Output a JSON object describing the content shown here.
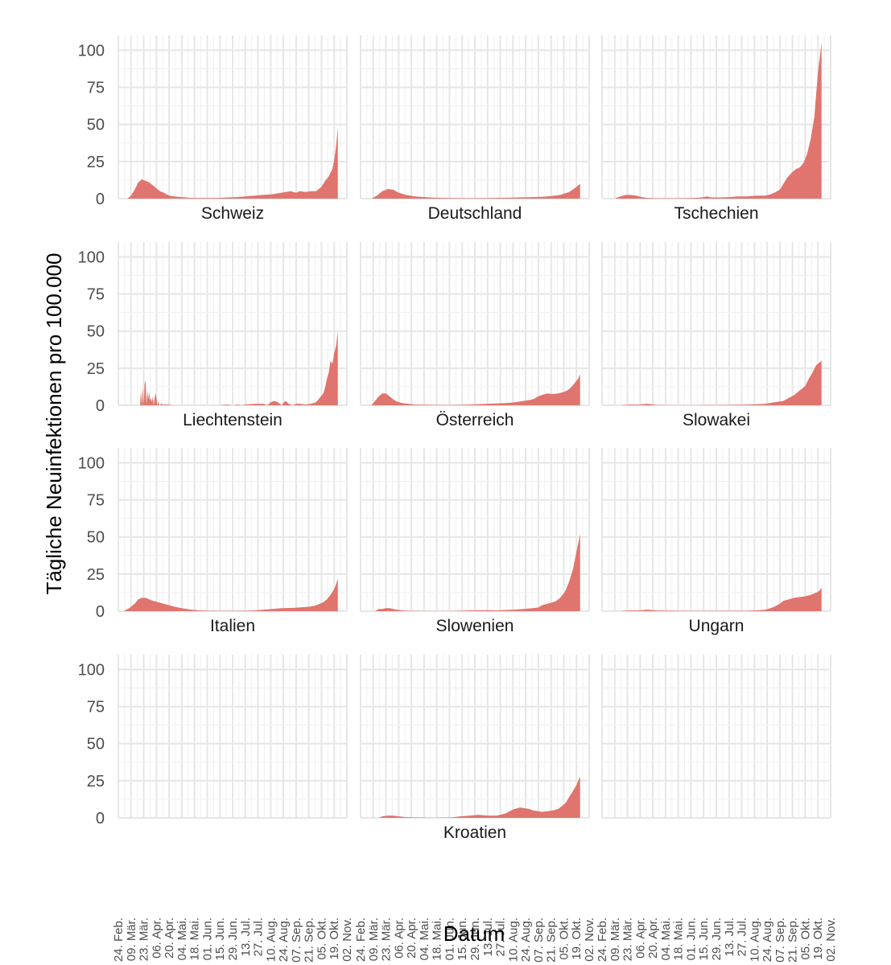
{
  "chart_data": {
    "type": "area",
    "layout": "facet-grid 4x3",
    "xlabel": "Datum",
    "ylabel": "Tägliche Neuinfektionen pro 100.000",
    "ylim": [
      0,
      110
    ],
    "yticks": [
      0,
      25,
      50,
      75,
      100
    ],
    "x_tick_labels": [
      "24. Feb.",
      "09. Mär.",
      "23. Mär.",
      "06. Apr.",
      "20. Apr.",
      "04. Mai.",
      "18. Mai.",
      "01. Jun.",
      "15. Jun.",
      "29. Jun.",
      "13. Jul.",
      "27. Jul.",
      "10. Aug.",
      "24. Aug.",
      "07. Sep.",
      "21. Sep.",
      "05. Okt.",
      "19. Okt.",
      "02. Nov."
    ],
    "x_unit": "days since 24. Feb.",
    "xlim": [
      0,
      252
    ],
    "fill_color": "#E0746E",
    "grid": true,
    "panels": [
      {
        "name": "Schweiz",
        "x": [
          0,
          10,
          14,
          18,
          22,
          26,
          30,
          34,
          38,
          42,
          46,
          50,
          56,
          62,
          70,
          80,
          90,
          100,
          110,
          120,
          130,
          140,
          150,
          160,
          170,
          180,
          190,
          196,
          200,
          206,
          212,
          218,
          224,
          228,
          232,
          236,
          238,
          240,
          242
        ],
        "y": [
          0,
          0,
          2,
          6,
          11,
          13,
          12,
          11,
          9,
          7,
          5,
          4,
          2,
          1.5,
          1,
          0.5,
          0.5,
          0.5,
          0.5,
          0.8,
          1,
          1.5,
          2,
          2.5,
          3,
          4,
          5,
          4,
          5,
          4.5,
          5,
          5,
          8,
          12,
          15,
          20,
          26,
          35,
          48
        ]
      },
      {
        "name": "Deutschland",
        "x": [
          0,
          12,
          18,
          24,
          30,
          36,
          42,
          50,
          60,
          80,
          100,
          120,
          140,
          160,
          180,
          200,
          210,
          220,
          230,
          236,
          240,
          242
        ],
        "y": [
          0,
          0,
          2,
          5,
          6.5,
          6,
          4,
          2.5,
          1.5,
          0.7,
          0.4,
          0.3,
          0.4,
          0.6,
          0.9,
          1.2,
          1.7,
          2.5,
          4.5,
          7,
          9,
          10
        ]
      },
      {
        "name": "Tschechien",
        "x": [
          0,
          14,
          20,
          26,
          32,
          38,
          44,
          50,
          60,
          80,
          100,
          110,
          116,
          120,
          130,
          140,
          150,
          160,
          170,
          180,
          186,
          190,
          196,
          200,
          204,
          210,
          214,
          218,
          222,
          226,
          230,
          234,
          236,
          238,
          240,
          242
        ],
        "y": [
          0,
          0,
          1.5,
          2.5,
          2.5,
          2,
          1,
          0.5,
          0.3,
          0.3,
          0.4,
          0.8,
          1.5,
          0.8,
          0.8,
          1,
          1.5,
          1.5,
          2,
          2,
          3,
          4,
          6,
          10,
          14,
          18,
          20,
          21,
          24,
          30,
          40,
          55,
          70,
          85,
          95,
          105
        ]
      },
      {
        "name": "Liechtenstein",
        "x": [
          0,
          24,
          25,
          26,
          27,
          28,
          29,
          30,
          31,
          32,
          33,
          34,
          35,
          36,
          37,
          38,
          39,
          40,
          41,
          42,
          43,
          44,
          45,
          46,
          47,
          48,
          49,
          50,
          55,
          60,
          70,
          110,
          120,
          126,
          132,
          136,
          140,
          150,
          160,
          164,
          168,
          172,
          176,
          180,
          184,
          188,
          192,
          196,
          200,
          206,
          212,
          218,
          222,
          226,
          228,
          230,
          232,
          234,
          236,
          238,
          240,
          242
        ],
        "y": [
          0,
          0,
          10,
          0,
          12,
          0,
          14,
          17,
          0,
          10,
          4,
          9,
          3,
          5,
          2,
          6,
          0,
          5,
          8,
          5,
          0,
          3,
          0,
          0,
          1,
          1,
          0,
          0.5,
          0.5,
          0,
          0,
          0,
          0.5,
          0,
          0.5,
          0,
          0.5,
          1,
          1,
          0,
          2,
          3,
          2,
          0,
          3,
          1,
          0,
          1,
          1,
          0.5,
          1,
          2,
          5,
          8,
          12,
          18,
          22,
          30,
          28,
          35,
          40,
          50
        ]
      },
      {
        "name": "Österreich",
        "x": [
          0,
          12,
          16,
          20,
          24,
          28,
          32,
          36,
          40,
          46,
          52,
          60,
          80,
          100,
          120,
          140,
          160,
          170,
          180,
          190,
          196,
          200,
          206,
          212,
          218,
          224,
          228,
          232,
          236,
          240,
          242
        ],
        "y": [
          0,
          0,
          3,
          6,
          8,
          8,
          6,
          4,
          2.5,
          1.5,
          1,
          0.5,
          0.3,
          0.2,
          0.5,
          1,
          1.5,
          2,
          3,
          4,
          6,
          7,
          8,
          7.5,
          8,
          9,
          10,
          12,
          15,
          18,
          21
        ]
      },
      {
        "name": "Slowakei",
        "x": [
          0,
          20,
          30,
          40,
          50,
          60,
          80,
          100,
          120,
          140,
          160,
          170,
          180,
          190,
          200,
          206,
          212,
          218,
          224,
          228,
          232,
          236,
          240,
          242
        ],
        "y": [
          0,
          0,
          0.5,
          0.5,
          1,
          0.2,
          0.1,
          0.1,
          0.2,
          0.3,
          0.5,
          0.7,
          1,
          2,
          3,
          5,
          7,
          10,
          13,
          18,
          22,
          27,
          29,
          30
        ]
      },
      {
        "name": "Italien",
        "x": [
          0,
          6,
          12,
          18,
          22,
          26,
          30,
          34,
          38,
          44,
          50,
          56,
          62,
          70,
          80,
          90,
          100,
          110,
          120,
          130,
          140,
          150,
          160,
          170,
          180,
          190,
          200,
          210,
          216,
          220,
          226,
          230,
          234,
          238,
          240,
          242
        ],
        "y": [
          0,
          0,
          2,
          5,
          8,
          9,
          9,
          8,
          7,
          6,
          5,
          4,
          3,
          2,
          1,
          0.5,
          0.3,
          0.2,
          0.2,
          0.2,
          0.3,
          0.5,
          1,
          1.5,
          2,
          2.2,
          2.5,
          3,
          3.5,
          4.5,
          6,
          8,
          11,
          15,
          18,
          22
        ]
      },
      {
        "name": "Slowenien",
        "x": [
          0,
          16,
          20,
          24,
          28,
          32,
          36,
          40,
          46,
          52,
          60,
          80,
          100,
          120,
          140,
          150,
          160,
          170,
          180,
          190,
          196,
          200,
          206,
          212,
          216,
          220,
          224,
          226,
          228,
          230,
          232,
          234,
          236,
          238,
          240,
          242
        ],
        "y": [
          0,
          0,
          1.5,
          1.5,
          2,
          2,
          1.5,
          1,
          0.5,
          0.3,
          0.2,
          0.1,
          0.1,
          0.5,
          0.7,
          0.5,
          0.8,
          1,
          1.5,
          2,
          2.5,
          4,
          5,
          6,
          7,
          9,
          12,
          14,
          17,
          20,
          24,
          28,
          34,
          40,
          46,
          52
        ]
      },
      {
        "name": "Ungarn",
        "x": [
          0,
          20,
          30,
          40,
          50,
          60,
          80,
          100,
          120,
          140,
          160,
          170,
          180,
          186,
          190,
          196,
          200,
          206,
          212,
          218,
          224,
          230,
          234,
          238,
          240,
          242
        ],
        "y": [
          0,
          0,
          0.5,
          0.5,
          1,
          0.5,
          0.3,
          0.2,
          0.2,
          0.3,
          0.3,
          0.5,
          1,
          2,
          3,
          5,
          7,
          8,
          9,
          9.5,
          10,
          11,
          12,
          13,
          14,
          16
        ]
      },
      {
        "name": "",
        "x": [],
        "y": []
      },
      {
        "name": "Kroatien",
        "x": [
          0,
          20,
          24,
          30,
          36,
          42,
          50,
          60,
          80,
          100,
          110,
          120,
          130,
          140,
          150,
          160,
          166,
          170,
          176,
          180,
          186,
          190,
          196,
          200,
          206,
          212,
          218,
          222,
          226,
          230,
          234,
          238,
          240,
          242
        ],
        "y": [
          0,
          0,
          1,
          1.5,
          1.5,
          1,
          0.5,
          0.3,
          0.1,
          0.3,
          1,
          1.5,
          2,
          1.5,
          1.5,
          3,
          5,
          6,
          7,
          6.5,
          6,
          5,
          4.5,
          4,
          4.5,
          5,
          6,
          8,
          10,
          14,
          18,
          22,
          25,
          28
        ]
      },
      {
        "name": "",
        "x": [],
        "y": []
      }
    ]
  }
}
